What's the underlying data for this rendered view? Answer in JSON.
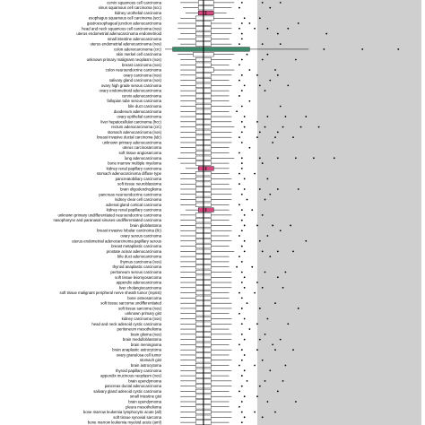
{
  "chart_data": {
    "type": "boxplot",
    "orientation": "horizontal",
    "title": "",
    "xlabel": "",
    "ylabel": "",
    "xlim": [
      0,
      1
    ],
    "shaded_region": {
      "from": 0.36,
      "to": 1.0,
      "color": "#cfcfcf"
    },
    "reference_line": 0.15,
    "colors": {
      "default": "#ffffff",
      "pink": "#d6487f",
      "green": "#3c8a6a",
      "shade": "#cfcfcf"
    },
    "categories": [
      "cervix squamous cell carcinoma",
      "sinus squamous cell carcinoma (scc)",
      "kidney urothelial carcinoma",
      "esophagus squamous cell carcinoma (scc)",
      "gastroesophageal junction adenocarcinoma",
      "head and neck squamous cell carcinoma (nos)",
      "uterus endometrial adenocarcinoma endometrioid",
      "small intestine adenocarcinoma",
      "uterus endometrial adenocarcinoma (nos)",
      "colon adenocarcinoma (crc)",
      "skin merkel cell carcinoma",
      "unknown primary malignant neoplasm (nos)",
      "breast carcinoma (nos)",
      "colon neuroendocrine carcinoma",
      "ovary carcinoma (nos)",
      "salivary gland carcinoma (nos)",
      "ovary high grade serous carcinoma",
      "ovary endometrioid adenocarcinoma",
      "cervix adenocarcinoma",
      "fallopian tube serous carcinoma",
      "bile duct carcinoma",
      "duodenum adenocarcinoma",
      "ovary epithelial carcinoma",
      "liver hepatocellular carcinoma (hcc)",
      "rectum adenocarcinoma (crc)",
      "stomach adenocarcinoma (nos)",
      "breast invasive ductal carcinoma (idc)",
      "unknown primary adenocarcinoma",
      "uterus carcinosarcoma",
      "soft tissue angiosarcoma",
      "lung adenocarcinoma",
      "bone marrow multiple myeloma",
      "kidney renal papillary carcinoma",
      "stomach adenocarcinoma diffuse type",
      "pancreatobiliary carcinoma",
      "soft tissue neuroblastoma",
      "brain oligodendroglioma",
      "pancreas neuroendocrine carcinoma",
      "kidney clear cell carcinoma",
      "adrenal gland cortical carcinoma",
      "kidney renal papillary carcinoma",
      "unknown primary undifferentiated neuroendocrine carcinoma",
      "nasopharynx and paranasal sinuses undifferentiated carcinoma",
      "brain glioblastoma",
      "breast invasive lobular carcinoma (ilc)",
      "ovary serous carcinoma",
      "uterus endometrial adenocarcinoma papillary serous",
      "breast metaplastic carcinoma",
      "prostate acinar adenocarcinoma",
      "bile duct adenocarcinoma",
      "thymus carcinoma (nos)",
      "thyroid anaplastic carcinoma",
      "peritoneum serous carcinoma",
      "soft tissue leiomyosarcoma",
      "appendix adenocarcinoma",
      "liver cholangiocarcinoma",
      "soft tissue malignant peripheral nerve sheath tumor (mpnst)",
      "bone osteosarcoma",
      "soft tissue sarcoma undifferentiated",
      "soft tissue sarcoma (nos)",
      "unknown primary gist",
      "kidney carcinoma (nos)",
      "head and neck adenoid cystic carcinoma",
      "peritoneum mesothelioma",
      "brain glioma (nos)",
      "brain medulloblastoma",
      "brain meningioma",
      "brain anaplastic astrocytoma",
      "ovary granulosa cell tumor",
      "stomach gist",
      "brain astrocytoma",
      "thyroid papillary carcinoma",
      "appendix mucinous neoplasm (nos)",
      "brain ependymoma",
      "pancreas ductal adenocarcinoma",
      "salivary gland adenoid cystic carcinoma",
      "small intestine gist",
      "brain ependymoma",
      "pleura mesothelioma",
      "bone marrow leukemia lymphocytic acute (all)",
      "soft tissue synovial sarcoma",
      "bone marrow leukemia myeloid acute (aml)"
    ],
    "fills": {
      "2": "pink",
      "9": "green",
      "32": "pink",
      "40": "pink"
    },
    "series": [
      {
        "q1": 0.13,
        "median": 0.15,
        "q3": 0.19,
        "lo": 0.06,
        "hi": 0.27,
        "outliers": [
          0.3,
          0.38,
          0.45
        ]
      },
      {
        "q1": 0.13,
        "median": 0.15,
        "q3": 0.19,
        "lo": 0.07,
        "hi": 0.26,
        "outliers": [
          0.29,
          0.41
        ]
      },
      {
        "q1": 0.13,
        "median": 0.16,
        "q3": 0.19,
        "lo": 0.08,
        "hi": 0.24,
        "outliers": []
      },
      {
        "q1": 0.12,
        "median": 0.15,
        "q3": 0.19,
        "lo": 0.06,
        "hi": 0.27,
        "outliers": [
          0.31,
          0.37
        ]
      },
      {
        "q1": 0.12,
        "median": 0.15,
        "q3": 0.18,
        "lo": 0.05,
        "hi": 0.26,
        "outliers": [
          0.3,
          0.33,
          0.52
        ]
      },
      {
        "q1": 0.12,
        "median": 0.15,
        "q3": 0.18,
        "lo": 0.05,
        "hi": 0.26,
        "outliers": [
          0.29,
          0.35,
          0.4,
          0.48
        ]
      },
      {
        "q1": 0.12,
        "median": 0.15,
        "q3": 0.18,
        "lo": 0.06,
        "hi": 0.26,
        "outliers": [
          0.3,
          0.44,
          0.63
        ]
      },
      {
        "q1": 0.12,
        "median": 0.15,
        "q3": 0.18,
        "lo": 0.05,
        "hi": 0.25,
        "outliers": [
          0.3
        ]
      },
      {
        "q1": 0.12,
        "median": 0.15,
        "q3": 0.18,
        "lo": 0.06,
        "hi": 0.26,
        "outliers": [
          0.29,
          0.38,
          0.45
        ]
      },
      {
        "q1": 0.03,
        "median": 0.15,
        "q3": 0.33,
        "lo": 0.0,
        "hi": 0.56,
        "outliers": [
          0.62,
          0.77,
          0.91
        ]
      },
      {
        "q1": 0.11,
        "median": 0.15,
        "q3": 0.19,
        "lo": 0.05,
        "hi": 0.27,
        "outliers": [
          0.32,
          0.4
        ]
      },
      {
        "q1": 0.12,
        "median": 0.15,
        "q3": 0.18,
        "lo": 0.06,
        "hi": 0.26,
        "outliers": [
          0.3,
          0.38,
          0.51
        ]
      },
      {
        "q1": 0.12,
        "median": 0.15,
        "q3": 0.18,
        "lo": 0.06,
        "hi": 0.25,
        "outliers": [
          0.29
        ]
      },
      {
        "q1": 0.12,
        "median": 0.15,
        "q3": 0.19,
        "lo": 0.06,
        "hi": 0.27,
        "outliers": [
          0.33,
          0.43
        ]
      },
      {
        "q1": 0.12,
        "median": 0.15,
        "q3": 0.18,
        "lo": 0.06,
        "hi": 0.26,
        "outliers": [
          0.3,
          0.36,
          0.44
        ]
      },
      {
        "q1": 0.12,
        "median": 0.15,
        "q3": 0.18,
        "lo": 0.06,
        "hi": 0.25,
        "outliers": [
          0.29,
          0.41
        ]
      },
      {
        "q1": 0.12,
        "median": 0.15,
        "q3": 0.18,
        "lo": 0.06,
        "hi": 0.26,
        "outliers": [
          0.31,
          0.37,
          0.48
        ]
      },
      {
        "q1": 0.12,
        "median": 0.15,
        "q3": 0.18,
        "lo": 0.06,
        "hi": 0.25,
        "outliers": [
          0.3,
          0.39
        ]
      },
      {
        "q1": 0.12,
        "median": 0.15,
        "q3": 0.18,
        "lo": 0.06,
        "hi": 0.25,
        "outliers": [
          0.29
        ]
      },
      {
        "q1": 0.12,
        "median": 0.15,
        "q3": 0.18,
        "lo": 0.06,
        "hi": 0.25,
        "outliers": [
          0.33
        ]
      },
      {
        "q1": 0.12,
        "median": 0.15,
        "q3": 0.18,
        "lo": 0.06,
        "hi": 0.26,
        "outliers": [
          0.3,
          0.45
        ]
      },
      {
        "q1": 0.12,
        "median": 0.15,
        "q3": 0.18,
        "lo": 0.06,
        "hi": 0.25,
        "outliers": [
          0.28
        ]
      },
      {
        "q1": 0.12,
        "median": 0.15,
        "q3": 0.18,
        "lo": 0.06,
        "hi": 0.26,
        "outliers": [
          0.31,
          0.4,
          0.47,
          0.55
        ]
      },
      {
        "q1": 0.12,
        "median": 0.15,
        "q3": 0.18,
        "lo": 0.06,
        "hi": 0.26,
        "outliers": [
          0.3,
          0.36
        ]
      },
      {
        "q1": 0.12,
        "median": 0.15,
        "q3": 0.18,
        "lo": 0.06,
        "hi": 0.27,
        "outliers": [
          0.31,
          0.39,
          0.46,
          0.53,
          0.6
        ]
      },
      {
        "q1": 0.12,
        "median": 0.15,
        "q3": 0.18,
        "lo": 0.06,
        "hi": 0.26,
        "outliers": [
          0.3,
          0.37,
          0.44
        ]
      },
      {
        "q1": 0.12,
        "median": 0.15,
        "q3": 0.18,
        "lo": 0.06,
        "hi": 0.26,
        "outliers": [
          0.29,
          0.36,
          0.43,
          0.5
        ]
      },
      {
        "q1": 0.12,
        "median": 0.15,
        "q3": 0.18,
        "lo": 0.06,
        "hi": 0.26,
        "outliers": [
          0.3,
          0.42
        ]
      },
      {
        "q1": 0.12,
        "median": 0.15,
        "q3": 0.18,
        "lo": 0.06,
        "hi": 0.25,
        "outliers": [
          0.33
        ]
      },
      {
        "q1": 0.12,
        "median": 0.15,
        "q3": 0.18,
        "lo": 0.06,
        "hi": 0.25,
        "outliers": [
          0.29
        ]
      },
      {
        "q1": 0.12,
        "median": 0.15,
        "q3": 0.18,
        "lo": 0.05,
        "hi": 0.27,
        "outliers": [
          0.3,
          0.37,
          0.44,
          0.51,
          0.58,
          0.66
        ]
      },
      {
        "q1": 0.12,
        "median": 0.15,
        "q3": 0.18,
        "lo": 0.06,
        "hi": 0.25,
        "outliers": [
          0.3,
          0.38
        ]
      },
      {
        "q1": 0.13,
        "median": 0.16,
        "q3": 0.19,
        "lo": 0.08,
        "hi": 0.25,
        "outliers": [
          0.3
        ]
      },
      {
        "q1": 0.12,
        "median": 0.15,
        "q3": 0.18,
        "lo": 0.06,
        "hi": 0.25,
        "outliers": [
          0.29,
          0.35
        ]
      },
      {
        "q1": 0.12,
        "median": 0.15,
        "q3": 0.18,
        "lo": 0.06,
        "hi": 0.26,
        "outliers": [
          0.31,
          0.4
        ]
      },
      {
        "q1": 0.12,
        "median": 0.15,
        "q3": 0.18,
        "lo": 0.06,
        "hi": 0.25,
        "outliers": [
          0.29
        ]
      },
      {
        "q1": 0.12,
        "median": 0.15,
        "q3": 0.18,
        "lo": 0.06,
        "hi": 0.26,
        "outliers": [
          0.31,
          0.37,
          0.44,
          0.52
        ]
      },
      {
        "q1": 0.12,
        "median": 0.15,
        "q3": 0.18,
        "lo": 0.06,
        "hi": 0.26,
        "outliers": [
          0.3,
          0.41
        ]
      },
      {
        "q1": 0.12,
        "median": 0.15,
        "q3": 0.18,
        "lo": 0.06,
        "hi": 0.26,
        "outliers": [
          0.32,
          0.39
        ]
      },
      {
        "q1": 0.12,
        "median": 0.15,
        "q3": 0.18,
        "lo": 0.06,
        "hi": 0.25,
        "outliers": [
          0.29
        ]
      },
      {
        "q1": 0.13,
        "median": 0.16,
        "q3": 0.19,
        "lo": 0.08,
        "hi": 0.25,
        "outliers": [
          0.3,
          0.34
        ]
      },
      {
        "q1": 0.12,
        "median": 0.15,
        "q3": 0.18,
        "lo": 0.06,
        "hi": 0.26,
        "outliers": [
          0.31,
          0.38
        ]
      },
      {
        "q1": 0.12,
        "median": 0.15,
        "q3": 0.18,
        "lo": 0.06,
        "hi": 0.25,
        "outliers": [
          0.3
        ]
      },
      {
        "q1": 0.12,
        "median": 0.15,
        "q3": 0.18,
        "lo": 0.06,
        "hi": 0.26,
        "outliers": [
          0.31,
          0.36,
          0.42,
          0.49
        ]
      },
      {
        "q1": 0.12,
        "median": 0.15,
        "q3": 0.18,
        "lo": 0.06,
        "hi": 0.26,
        "outliers": [
          0.3,
          0.45
        ]
      },
      {
        "q1": 0.12,
        "median": 0.15,
        "q3": 0.18,
        "lo": 0.06,
        "hi": 0.25,
        "outliers": [
          0.29,
          0.4
        ]
      },
      {
        "q1": 0.12,
        "median": 0.15,
        "q3": 0.18,
        "lo": 0.06,
        "hi": 0.26,
        "outliers": [
          0.31,
          0.37,
          0.55
        ]
      },
      {
        "q1": 0.12,
        "median": 0.15,
        "q3": 0.18,
        "lo": 0.06,
        "hi": 0.25,
        "outliers": [
          0.3
        ]
      },
      {
        "q1": 0.12,
        "median": 0.15,
        "q3": 0.18,
        "lo": 0.06,
        "hi": 0.27,
        "outliers": [
          0.31,
          0.38,
          0.44,
          0.5
        ]
      },
      {
        "q1": 0.12,
        "median": 0.15,
        "q3": 0.18,
        "lo": 0.06,
        "hi": 0.25,
        "outliers": [
          0.29,
          0.41
        ]
      },
      {
        "q1": 0.12,
        "median": 0.15,
        "q3": 0.18,
        "lo": 0.06,
        "hi": 0.25,
        "outliers": [
          0.3
        ]
      },
      {
        "q1": 0.12,
        "median": 0.15,
        "q3": 0.18,
        "lo": 0.06,
        "hi": 0.25,
        "outliers": [
          0.28,
          0.34
        ]
      },
      {
        "q1": 0.12,
        "median": 0.15,
        "q3": 0.18,
        "lo": 0.06,
        "hi": 0.26,
        "outliers": [
          0.3,
          0.39,
          0.47
        ]
      },
      {
        "q1": 0.12,
        "median": 0.15,
        "q3": 0.18,
        "lo": 0.06,
        "hi": 0.26,
        "outliers": [
          0.31,
          0.44
        ]
      },
      {
        "q1": 0.12,
        "median": 0.15,
        "q3": 0.18,
        "lo": 0.06,
        "hi": 0.26,
        "outliers": [
          0.3,
          0.36
        ]
      },
      {
        "q1": 0.12,
        "median": 0.15,
        "q3": 0.18,
        "lo": 0.06,
        "hi": 0.26,
        "outliers": [
          0.31,
          0.38,
          0.46
        ]
      },
      {
        "q1": 0.12,
        "median": 0.15,
        "q3": 0.18,
        "lo": 0.06,
        "hi": 0.25,
        "outliers": [
          0.29,
          0.35
        ]
      },
      {
        "q1": 0.12,
        "median": 0.15,
        "q3": 0.18,
        "lo": 0.06,
        "hi": 0.25,
        "outliers": [
          0.3
        ]
      },
      {
        "q1": 0.12,
        "median": 0.15,
        "q3": 0.18,
        "lo": 0.06,
        "hi": 0.26,
        "outliers": [
          0.32,
          0.43
        ]
      },
      {
        "q1": 0.12,
        "median": 0.15,
        "q3": 0.18,
        "lo": 0.06,
        "hi": 0.26,
        "outliers": [
          0.3,
          0.37,
          0.52
        ]
      },
      {
        "q1": 0.12,
        "median": 0.15,
        "q3": 0.18,
        "lo": 0.06,
        "hi": 0.25,
        "outliers": [
          0.29
        ]
      },
      {
        "q1": 0.12,
        "median": 0.15,
        "q3": 0.18,
        "lo": 0.06,
        "hi": 0.26,
        "outliers": [
          0.31,
          0.4
        ]
      },
      {
        "q1": 0.12,
        "median": 0.15,
        "q3": 0.18,
        "lo": 0.06,
        "hi": 0.26,
        "outliers": [
          0.3,
          0.36,
          0.48
        ]
      },
      {
        "q1": 0.12,
        "median": 0.15,
        "q3": 0.18,
        "lo": 0.06,
        "hi": 0.25,
        "outliers": [
          0.33
        ]
      },
      {
        "q1": 0.12,
        "median": 0.15,
        "q3": 0.18,
        "lo": 0.06,
        "hi": 0.26,
        "outliers": [
          0.3,
          0.39
        ]
      },
      {
        "q1": 0.12,
        "median": 0.15,
        "q3": 0.18,
        "lo": 0.06,
        "hi": 0.26,
        "outliers": [
          0.31,
          0.37,
          0.45
        ]
      },
      {
        "q1": 0.12,
        "median": 0.15,
        "q3": 0.18,
        "lo": 0.06,
        "hi": 0.25,
        "outliers": [
          0.29,
          0.42
        ]
      },
      {
        "q1": 0.12,
        "median": 0.15,
        "q3": 0.18,
        "lo": 0.06,
        "hi": 0.26,
        "outliers": [
          0.3,
          0.36,
          0.43,
          0.5
        ]
      },
      {
        "q1": 0.12,
        "median": 0.15,
        "q3": 0.18,
        "lo": 0.06,
        "hi": 0.25,
        "outliers": [
          0.31
        ]
      },
      {
        "q1": 0.12,
        "median": 0.15,
        "q3": 0.18,
        "lo": 0.06,
        "hi": 0.26,
        "outliers": [
          0.3,
          0.38
        ]
      },
      {
        "q1": 0.12,
        "median": 0.15,
        "q3": 0.18,
        "lo": 0.06,
        "hi": 0.25,
        "outliers": [
          0.29,
          0.35,
          0.47
        ]
      },
      {
        "q1": 0.12,
        "median": 0.15,
        "q3": 0.18,
        "lo": 0.06,
        "hi": 0.26,
        "outliers": [
          0.31,
          0.41
        ]
      },
      {
        "q1": 0.12,
        "median": 0.15,
        "q3": 0.18,
        "lo": 0.06,
        "hi": 0.25,
        "outliers": [
          0.3
        ]
      },
      {
        "q1": 0.12,
        "median": 0.15,
        "q3": 0.18,
        "lo": 0.06,
        "hi": 0.26,
        "outliers": [
          0.32,
          0.39,
          0.46
        ]
      },
      {
        "q1": 0.12,
        "median": 0.15,
        "q3": 0.18,
        "lo": 0.06,
        "hi": 0.26,
        "outliers": [
          0.3,
          0.37
        ]
      },
      {
        "q1": 0.12,
        "median": 0.15,
        "q3": 0.18,
        "lo": 0.06,
        "hi": 0.25,
        "outliers": [
          0.29,
          0.44
        ]
      },
      {
        "q1": 0.12,
        "median": 0.15,
        "q3": 0.18,
        "lo": 0.06,
        "hi": 0.26,
        "outliers": [
          0.31,
          0.36
        ]
      },
      {
        "q1": 0.12,
        "median": 0.15,
        "q3": 0.18,
        "lo": 0.06,
        "hi": 0.25,
        "outliers": [
          0.3,
          0.4,
          0.51
        ]
      },
      {
        "q1": 0.12,
        "median": 0.15,
        "q3": 0.18,
        "lo": 0.06,
        "hi": 0.25,
        "outliers": [
          0.29
        ]
      },
      {
        "q1": 0.12,
        "median": 0.15,
        "q3": 0.18,
        "lo": 0.06,
        "hi": 0.26,
        "outliers": [
          0.3,
          0.35,
          0.43
        ]
      },
      {
        "q1": 0.12,
        "median": 0.15,
        "q3": 0.18,
        "lo": 0.06,
        "hi": 0.26,
        "outliers": [
          0.31,
          0.38
        ]
      },
      {
        "q1": 0.12,
        "median": 0.15,
        "q3": 0.18,
        "lo": 0.06,
        "hi": 0.25,
        "outliers": [
          0.3
        ]
      }
    ]
  }
}
